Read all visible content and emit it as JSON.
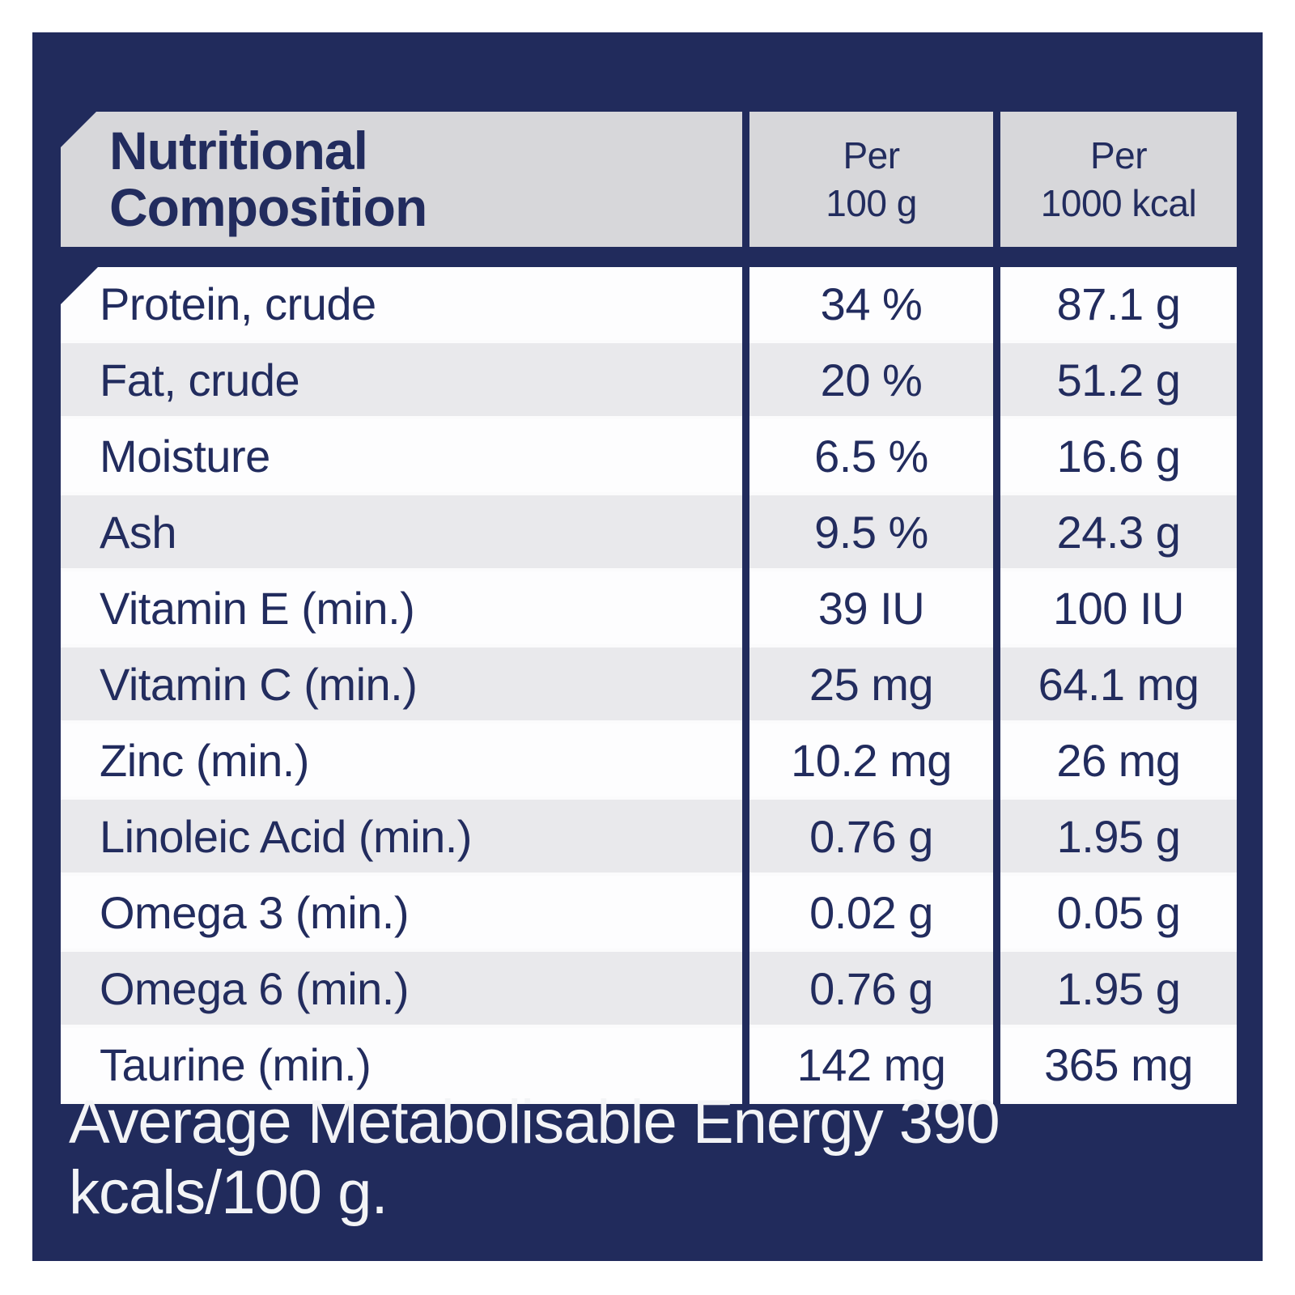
{
  "colors": {
    "panel_navy": "#212b5c",
    "text_navy": "#222c5e",
    "header_gray": "#d7d7da",
    "row_white": "#fdfdfe",
    "row_gray": "#e9e9ec",
    "footer_text": "#f3f4f6"
  },
  "table": {
    "title_line1": "Nutritional",
    "title_line2": "Composition",
    "columns": [
      {
        "line1": "Per",
        "line2": "100 g"
      },
      {
        "line1": "Per",
        "line2": "1000 kcal"
      }
    ],
    "rows": [
      {
        "label": "Protein, crude",
        "per_100g": "34 %",
        "per_1000kcal": "87.1 g"
      },
      {
        "label": "Fat, crude",
        "per_100g": "20 %",
        "per_1000kcal": "51.2 g"
      },
      {
        "label": "Moisture",
        "per_100g": "6.5 %",
        "per_1000kcal": "16.6 g"
      },
      {
        "label": "Ash",
        "per_100g": "9.5 %",
        "per_1000kcal": "24.3 g"
      },
      {
        "label": "Vitamin E (min.)",
        "per_100g": "39 IU",
        "per_1000kcal": "100 IU"
      },
      {
        "label": "Vitamin C (min.)",
        "per_100g": "25 mg",
        "per_1000kcal": "64.1 mg"
      },
      {
        "label": "Zinc (min.)",
        "per_100g": "10.2 mg",
        "per_1000kcal": "26 mg"
      },
      {
        "label": "Linoleic Acid (min.)",
        "per_100g": "0.76 g",
        "per_1000kcal": "1.95 g"
      },
      {
        "label": "Omega 3 (min.)",
        "per_100g": "0.02 g",
        "per_1000kcal": "0.05 g"
      },
      {
        "label": "Omega 6 (min.)",
        "per_100g": "0.76 g",
        "per_1000kcal": "1.95 g"
      },
      {
        "label": "Taurine (min.)",
        "per_100g": "142 mg",
        "per_1000kcal": "365 mg"
      }
    ],
    "footer": "Average Metabolisable Energy 390 kcals/100 g."
  }
}
